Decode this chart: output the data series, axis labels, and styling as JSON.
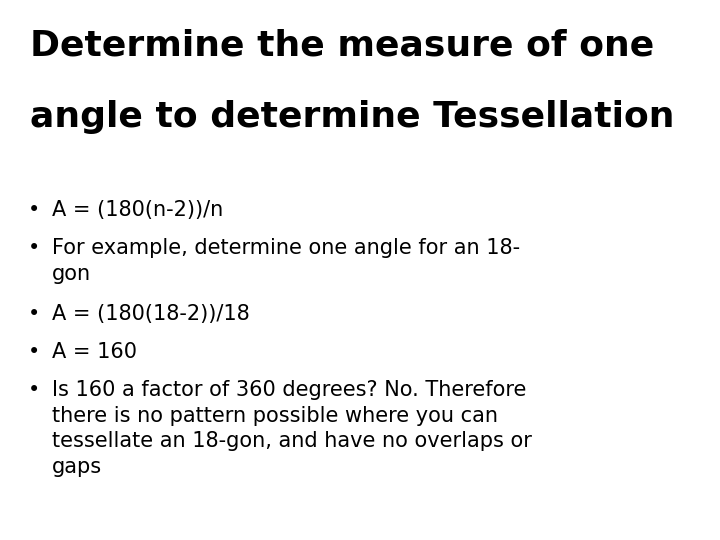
{
  "title_line1": "Determine the measure of one",
  "title_line2": "angle to determine Tessellation",
  "bullets": [
    {
      "text": "A = (180(n-2))/n",
      "lines": 1
    },
    {
      "text": "For example, determine one angle for an 18-\ngon",
      "lines": 2
    },
    {
      "text": "A = (180(18-2))/18",
      "lines": 1
    },
    {
      "text": "A = 160",
      "lines": 1
    },
    {
      "text": "Is 160 a factor of 360 degrees? No. Therefore\nthere is no pattern possible where you can\ntessellate an 18-gon, and have no overlaps or\ngaps",
      "lines": 4
    }
  ],
  "bg_color": "#ffffff",
  "text_color": "#000000",
  "title_fontsize": 26,
  "bullet_fontsize": 15,
  "font_family": "DejaVu Sans"
}
